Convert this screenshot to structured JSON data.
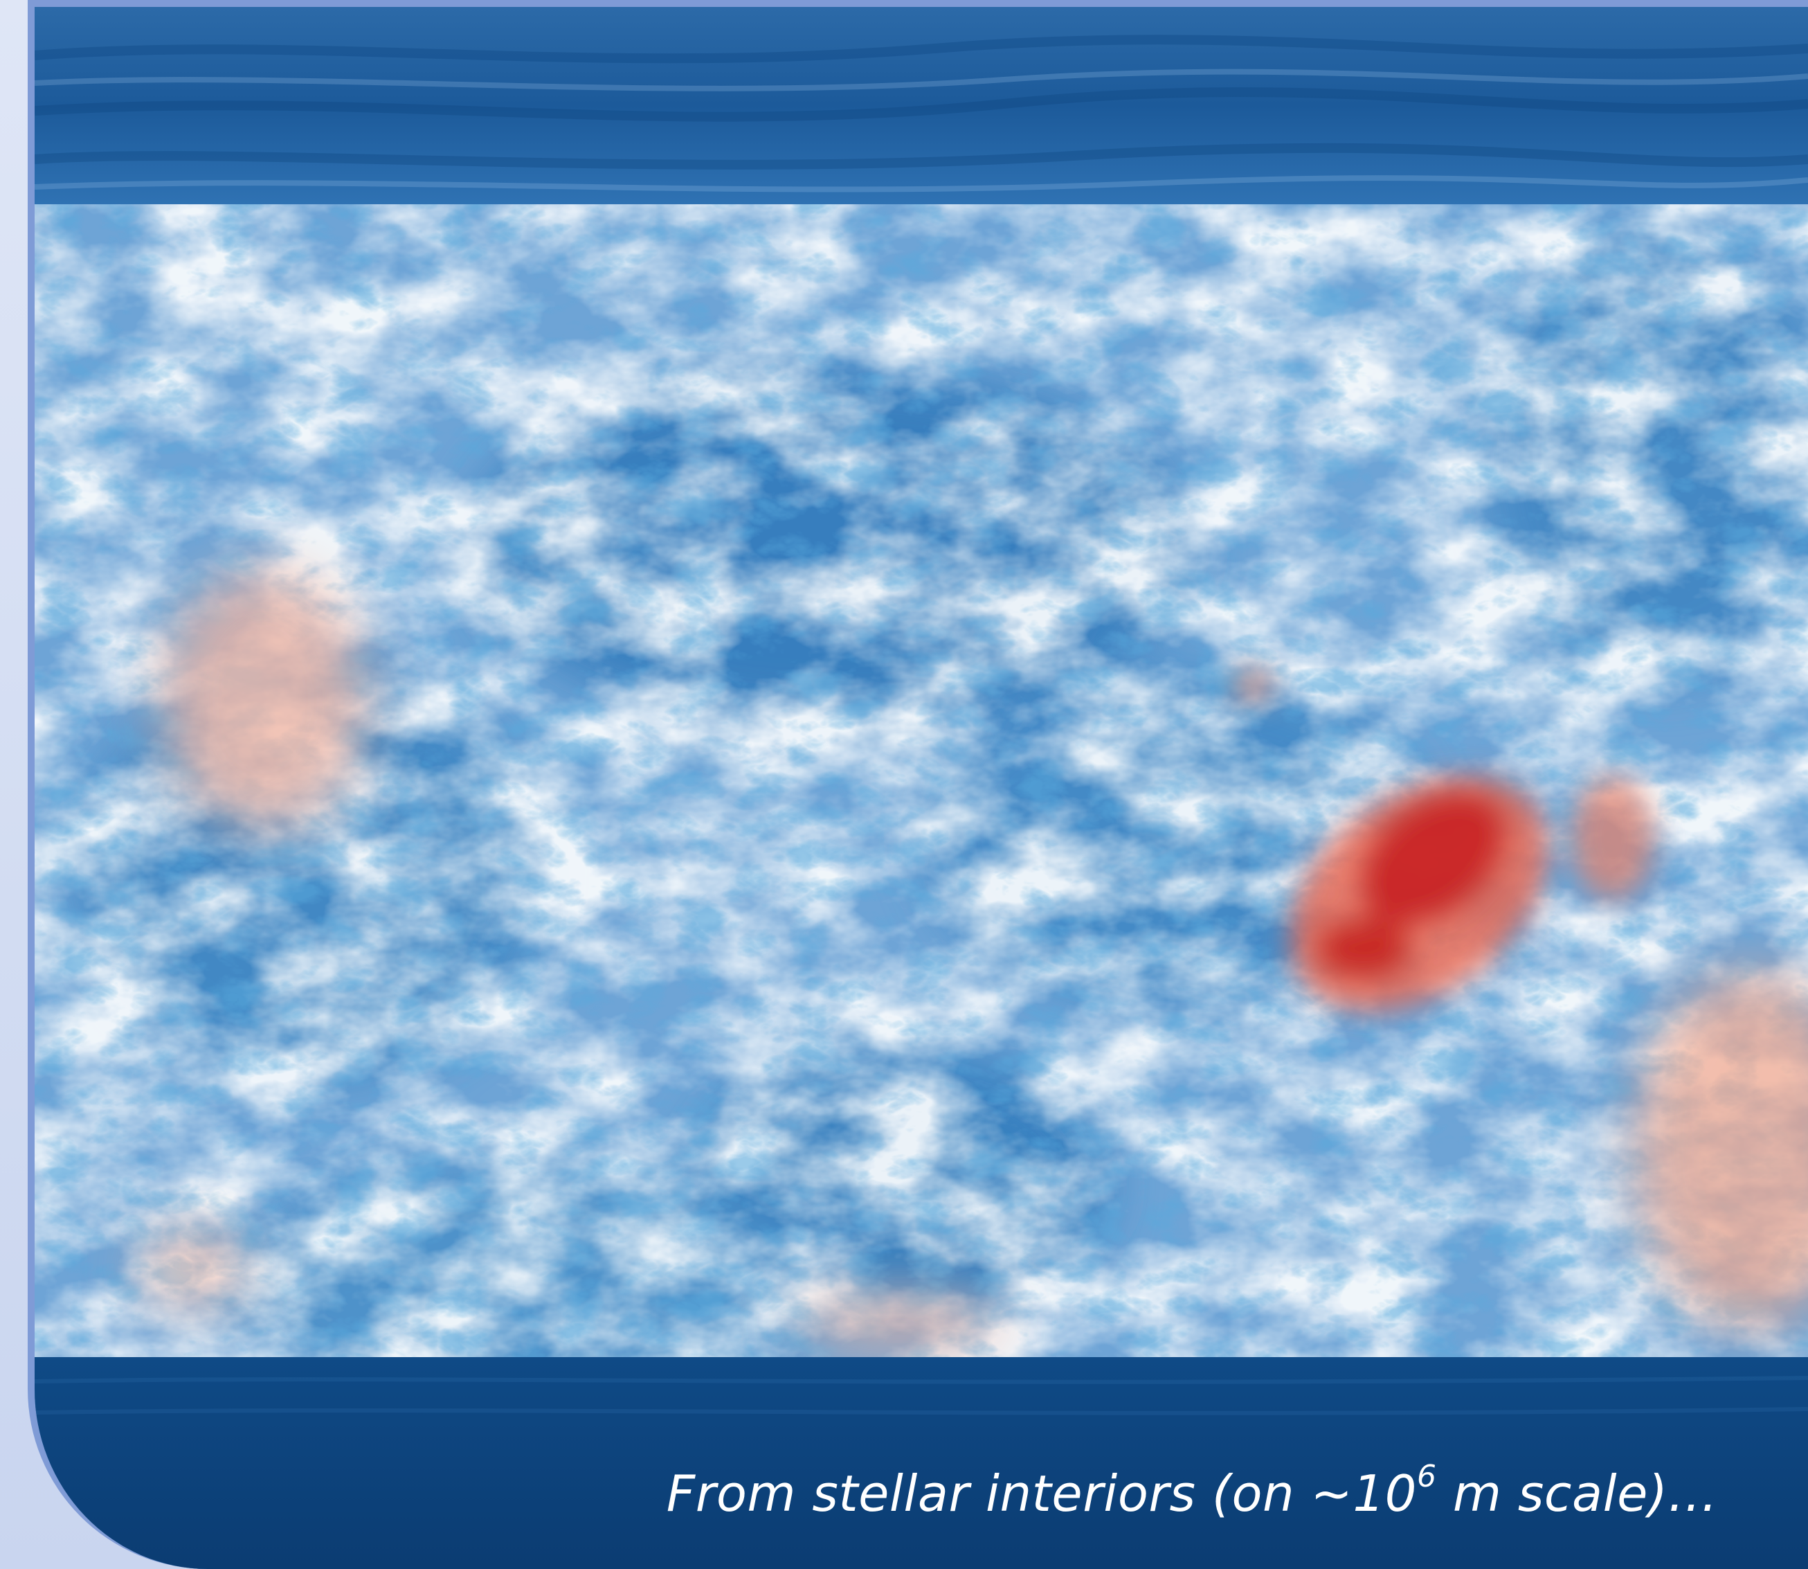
{
  "caption": {
    "before": "From stellar interiors (on ~10",
    "exponent": "6",
    "after": " m scale)…"
  },
  "colors": {
    "frame": "#cdd8f0",
    "border": "#7f9bd6",
    "deep_blue": "#0d3a6e",
    "mid_blue": "#2f7fc1",
    "light": "#eef4fb",
    "warm": "#f2a58c",
    "red": "#c81e1e"
  }
}
